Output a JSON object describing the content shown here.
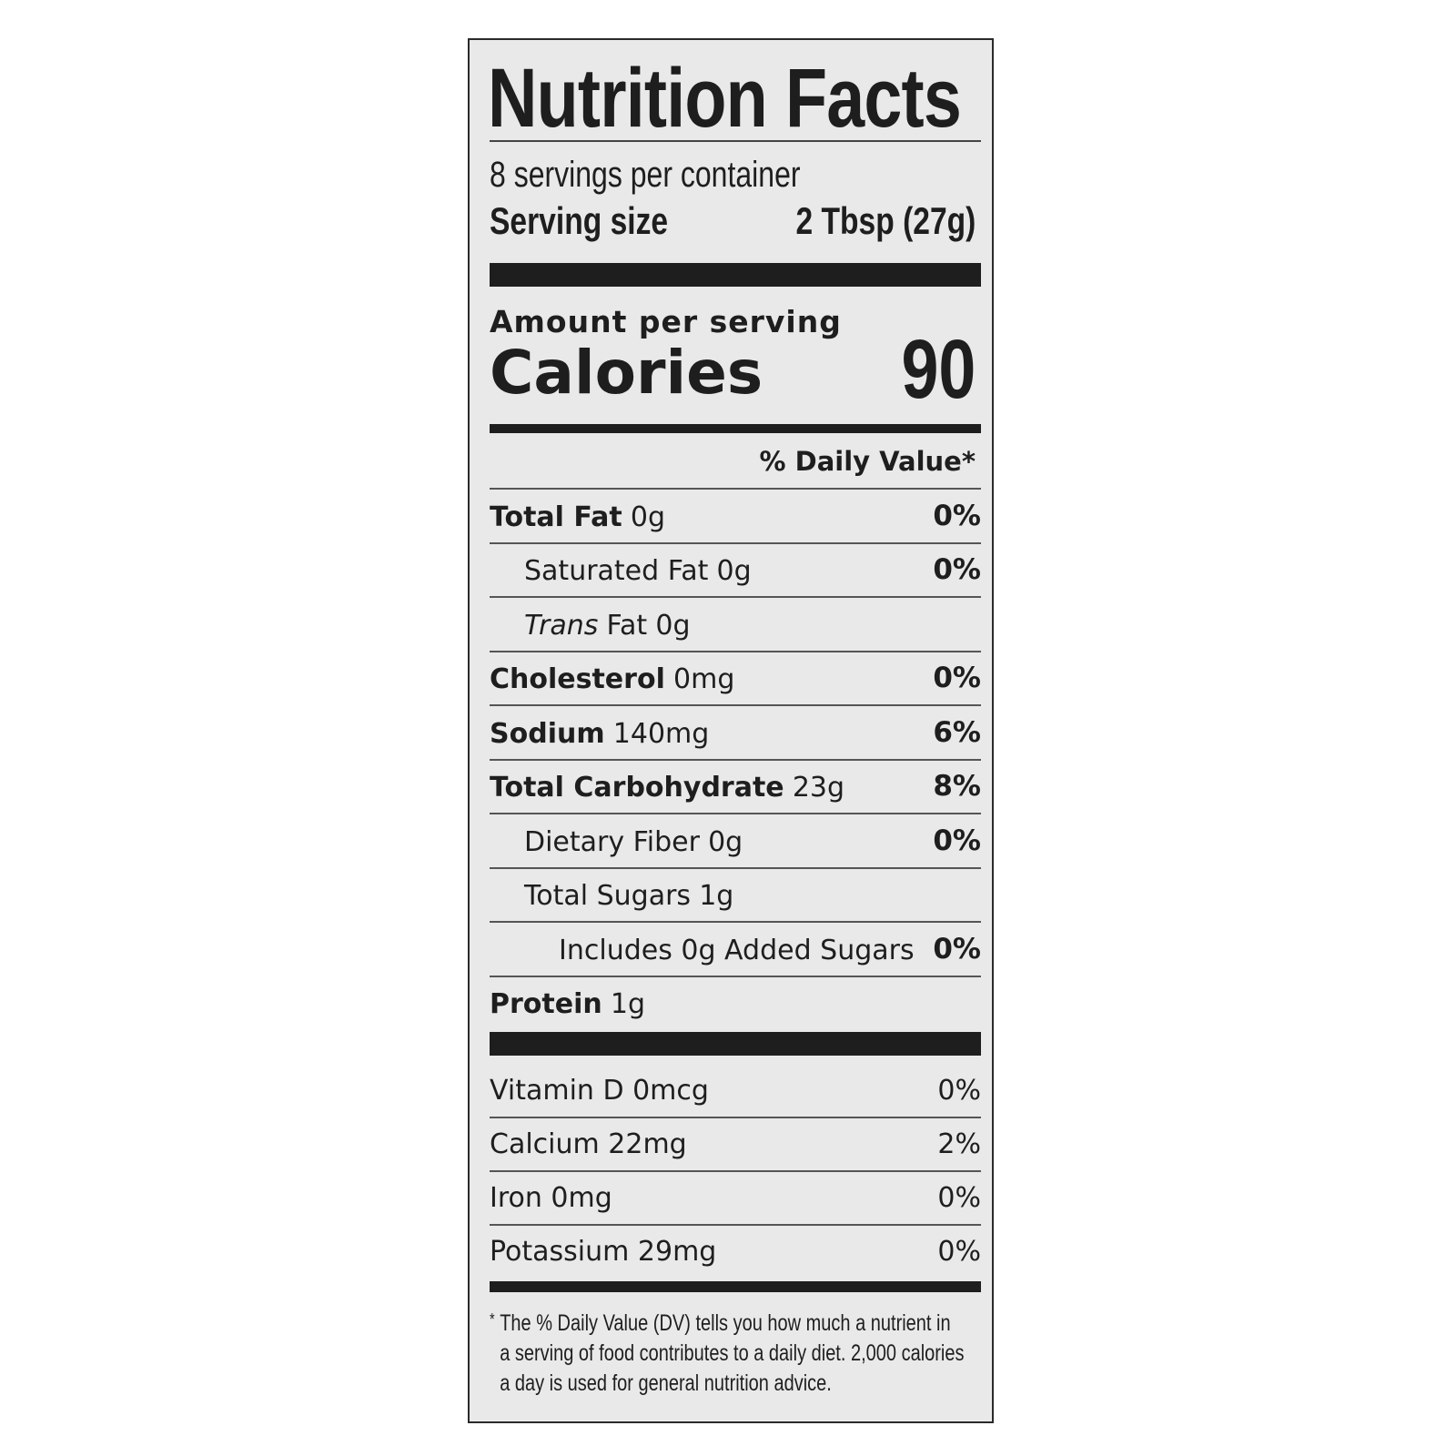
{
  "title": "Nutrition Facts",
  "servings_per_container": "8 servings per container",
  "serving_size": {
    "label": "Serving size",
    "value": "2 Tbsp (27g)"
  },
  "amount_per_serving": "Amount per serving",
  "calories": {
    "label": "Calories",
    "value": "90"
  },
  "daily_value_header": "% Daily Value*",
  "nutrients": [
    {
      "name": "Total Fat",
      "amount": "0g",
      "dv": "0%",
      "bold": true,
      "indent": 0
    },
    {
      "name": "Saturated Fat",
      "amount": "0g",
      "dv": "0%",
      "bold": false,
      "indent": 1
    },
    {
      "name_italic": "Trans",
      "name": "Fat",
      "amount": "0g",
      "dv": "",
      "bold": false,
      "indent": 1
    },
    {
      "name": "Cholesterol",
      "amount": "0mg",
      "dv": "0%",
      "bold": true,
      "indent": 0
    },
    {
      "name": "Sodium",
      "amount": "140mg",
      "dv": "6%",
      "bold": true,
      "indent": 0
    },
    {
      "name": "Total Carbohydrate",
      "amount": "23g",
      "dv": "8%",
      "bold": true,
      "indent": 0
    },
    {
      "name": "Dietary Fiber",
      "amount": "0g",
      "dv": "0%",
      "bold": false,
      "indent": 1
    },
    {
      "name": "Total Sugars",
      "amount": "1g",
      "dv": "",
      "bold": false,
      "indent": 1
    },
    {
      "name": "Includes 0g Added Sugars",
      "amount": "",
      "dv": "0%",
      "bold": false,
      "indent": 2
    },
    {
      "name": "Protein",
      "amount": "1g",
      "dv": "",
      "bold": true,
      "indent": 0
    }
  ],
  "vitamins": [
    {
      "name": "Vitamin D 0mcg",
      "dv": "0%"
    },
    {
      "name": "Calcium 22mg",
      "dv": "2%"
    },
    {
      "name": "Iron 0mg",
      "dv": "0%"
    },
    {
      "name": "Potassium 29mg",
      "dv": "0%"
    }
  ],
  "footnote": {
    "marker": "*",
    "lines": [
      "The % Daily Value (DV) tells you how much a nutrient in",
      "a serving of food contributes to a daily diet. 2,000 calories",
      "a day is used for general nutrition advice."
    ]
  }
}
